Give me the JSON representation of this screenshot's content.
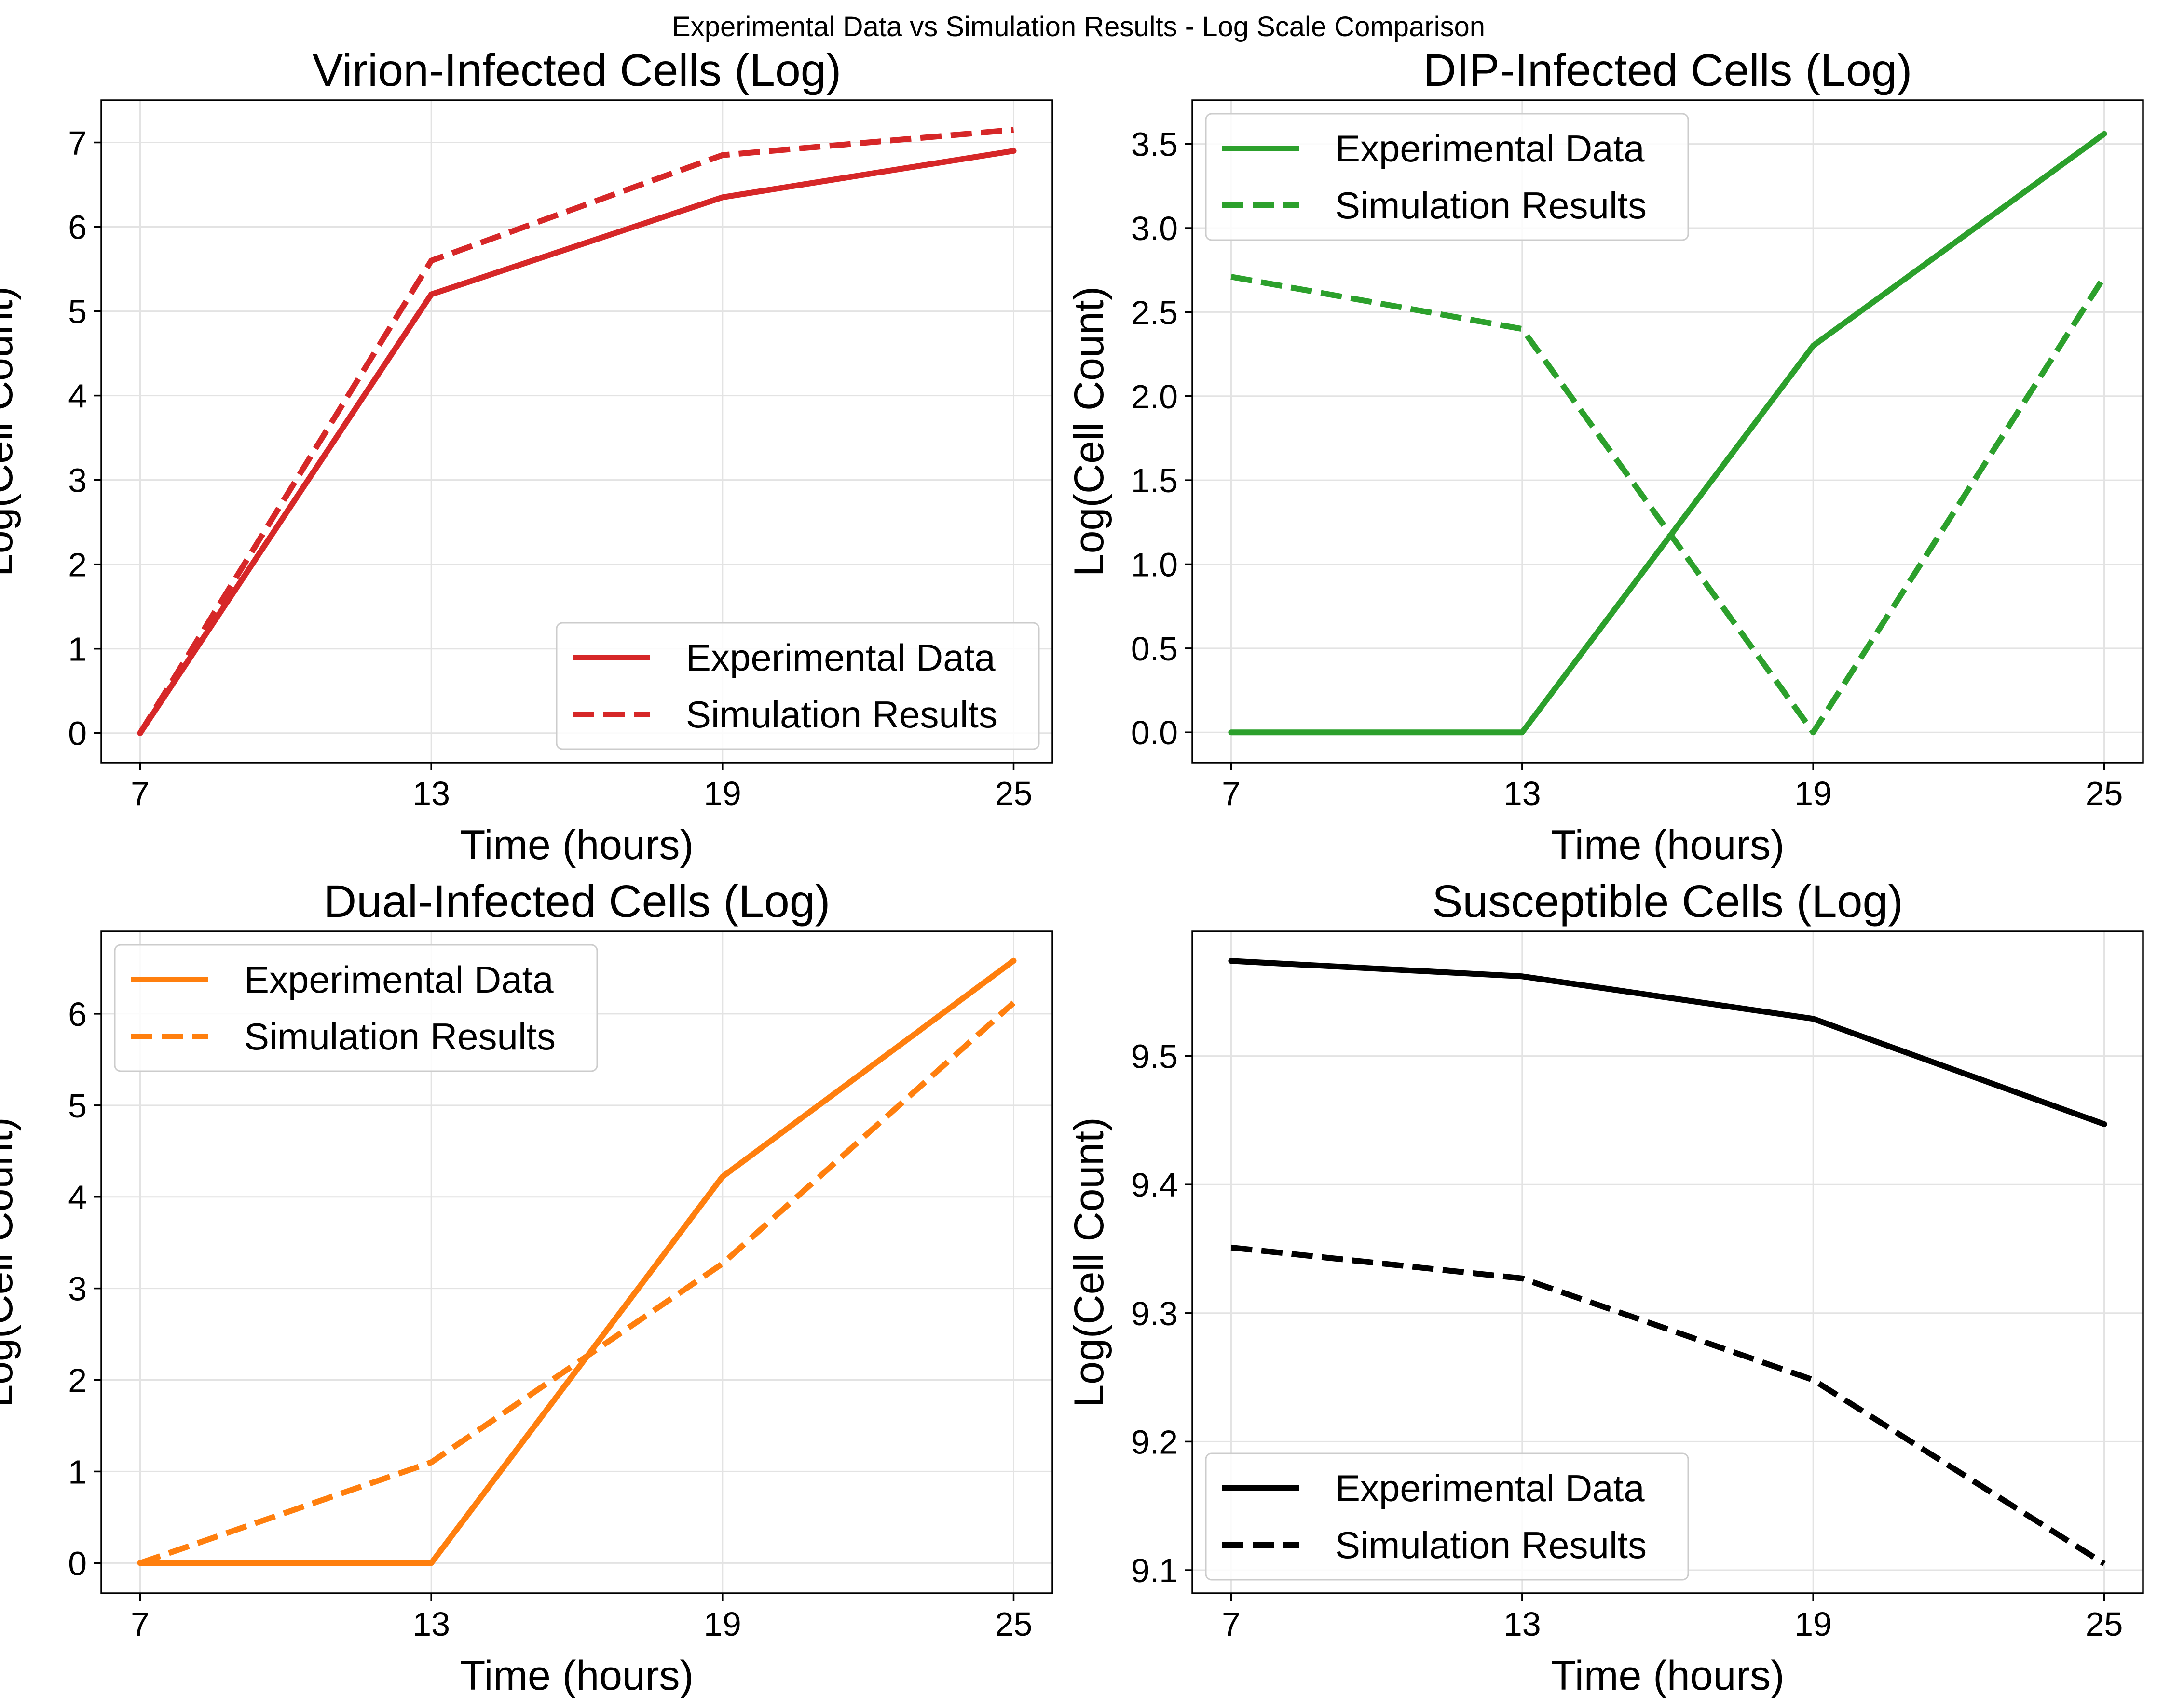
{
  "suptitle": "Experimental Data vs Simulation Results - Log Scale Comparison",
  "chart_data": [
    {
      "type": "line",
      "title": "Virion-Infected Cells (Log)",
      "xlabel": "Time (hours)",
      "ylabel": "Log(Cell Count)",
      "color": "#d62728",
      "x": [
        7,
        13,
        19,
        25
      ],
      "xlim": [
        6.2,
        25.8
      ],
      "ylim": [
        -0.35,
        7.5
      ],
      "yticks": [
        0,
        1,
        2,
        3,
        4,
        5,
        6,
        7
      ],
      "ytick_labels": [
        "0",
        "1",
        "2",
        "3",
        "4",
        "5",
        "6",
        "7"
      ],
      "legend_loc": "lower-right",
      "grid": true,
      "series": [
        {
          "name": "Experimental Data",
          "style": "solid",
          "values": [
            0,
            5.2,
            6.35,
            6.9
          ]
        },
        {
          "name": "Simulation Results",
          "style": "dashed",
          "values": [
            0,
            5.6,
            6.85,
            7.15
          ]
        }
      ]
    },
    {
      "type": "line",
      "title": "DIP-Infected Cells (Log)",
      "xlabel": "Time (hours)",
      "ylabel": "Log(Cell Count)",
      "color": "#2ca02c",
      "x": [
        7,
        13,
        19,
        25
      ],
      "xlim": [
        6.2,
        25.8
      ],
      "ylim": [
        -0.18,
        3.76
      ],
      "yticks": [
        0,
        0.5,
        1,
        1.5,
        2,
        2.5,
        3,
        3.5
      ],
      "ytick_labels": [
        "0.0",
        "0.5",
        "1.0",
        "1.5",
        "2.0",
        "2.5",
        "3.0",
        "3.5"
      ],
      "legend_loc": "upper-left",
      "grid": true,
      "series": [
        {
          "name": "Experimental Data",
          "style": "solid",
          "values": [
            0,
            0,
            2.3,
            3.56
          ]
        },
        {
          "name": "Simulation Results",
          "style": "dashed",
          "values": [
            2.71,
            2.4,
            0,
            2.71
          ]
        }
      ]
    },
    {
      "type": "line",
      "title": "Dual-Infected Cells (Log)",
      "xlabel": "Time (hours)",
      "ylabel": "Log(Cell Count)",
      "color": "#ff7f0e",
      "x": [
        7,
        13,
        19,
        25
      ],
      "xlim": [
        6.2,
        25.8
      ],
      "ylim": [
        -0.33,
        6.9
      ],
      "yticks": [
        0,
        1,
        2,
        3,
        4,
        5,
        6
      ],
      "ytick_labels": [
        "0",
        "1",
        "2",
        "3",
        "4",
        "5",
        "6"
      ],
      "legend_loc": "upper-left",
      "grid": true,
      "series": [
        {
          "name": "Experimental Data",
          "style": "solid",
          "values": [
            0,
            0,
            4.22,
            6.58
          ]
        },
        {
          "name": "Simulation Results",
          "style": "dashed",
          "values": [
            0,
            1.1,
            3.27,
            6.12
          ]
        }
      ]
    },
    {
      "type": "line",
      "title": "Susceptible Cells (Log)",
      "xlabel": "Time (hours)",
      "ylabel": "Log(Cell Count)",
      "color": "#000000",
      "x": [
        7,
        13,
        19,
        25
      ],
      "xlim": [
        6.2,
        25.8
      ],
      "ylim": [
        9.082,
        9.597
      ],
      "yticks": [
        9.1,
        9.2,
        9.3,
        9.4,
        9.5
      ],
      "ytick_labels": [
        "9.1",
        "9.2",
        "9.3",
        "9.4",
        "9.5"
      ],
      "legend_loc": "lower-left",
      "grid": true,
      "series": [
        {
          "name": "Experimental Data",
          "style": "solid",
          "values": [
            9.574,
            9.562,
            9.529,
            9.447
          ]
        },
        {
          "name": "Simulation Results",
          "style": "dashed",
          "values": [
            9.351,
            9.327,
            9.248,
            9.105
          ]
        }
      ]
    }
  ]
}
